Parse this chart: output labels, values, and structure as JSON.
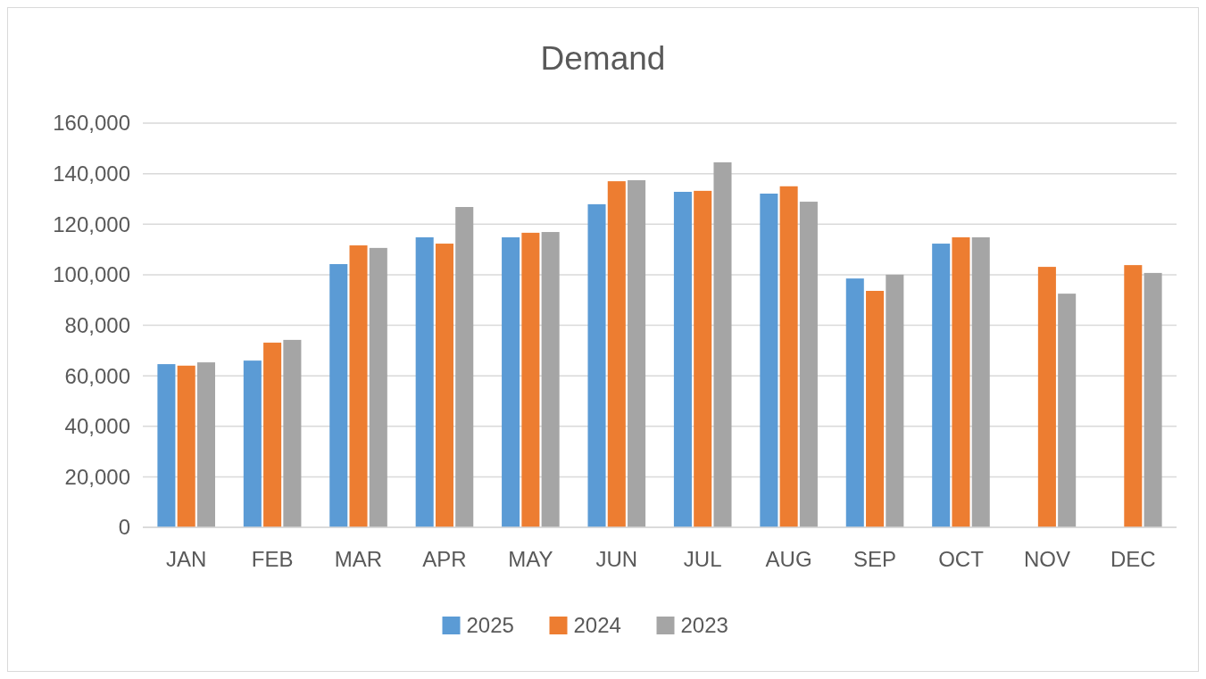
{
  "chart_data": {
    "type": "bar",
    "title": "Demand",
    "categories": [
      "JAN",
      "FEB",
      "MAR",
      "APR",
      "MAY",
      "JUN",
      "JUL",
      "AUG",
      "SEP",
      "OCT",
      "NOV",
      "DEC"
    ],
    "series": [
      {
        "name": "2025",
        "color": "#5b9bd5",
        "values": [
          64600,
          66000,
          104200,
          114800,
          114800,
          127900,
          132800,
          132100,
          98500,
          112300,
          null,
          null
        ]
      },
      {
        "name": "2024",
        "color": "#ed7d31",
        "values": [
          64000,
          73100,
          111600,
          112300,
          116600,
          137000,
          133200,
          135000,
          93600,
          114800,
          103100,
          103800
        ]
      },
      {
        "name": "2023",
        "color": "#a5a5a5",
        "values": [
          65300,
          74200,
          110600,
          126800,
          116900,
          137400,
          144500,
          128900,
          100000,
          114800,
          92500,
          100700
        ]
      }
    ],
    "ylim": [
      0,
      160000
    ],
    "yticks": [
      {
        "value": 0,
        "label": "0"
      },
      {
        "value": 20000,
        "label": "20,000"
      },
      {
        "value": 40000,
        "label": "40,000"
      },
      {
        "value": 60000,
        "label": "60,000"
      },
      {
        "value": 80000,
        "label": "80,000"
      },
      {
        "value": 100000,
        "label": "100,000"
      },
      {
        "value": 120000,
        "label": "120,000"
      },
      {
        "value": 140000,
        "label": "140,000"
      },
      {
        "value": 160000,
        "label": "160,000"
      }
    ],
    "grid": "y",
    "legend": "bottom"
  }
}
